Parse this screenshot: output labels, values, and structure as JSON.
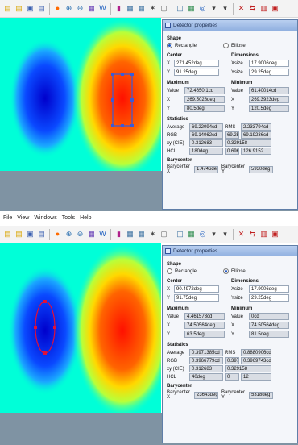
{
  "menu": [
    "File",
    "View",
    "Windows",
    "Tools",
    "Help"
  ],
  "toolbar_icons": [
    "open-folder-icon",
    "open-icon",
    "save-icon",
    "save-as-icon",
    "circle-icon",
    "zoom-in-icon",
    "zoom-out-icon",
    "color-map-icon",
    "w-icon",
    "palette-icon",
    "grid-icon",
    "grid-icon",
    "sun-icon",
    "square-icon",
    "chart-icon",
    "plot-icon",
    "crosshair-icon",
    "dropdown-icon",
    "dropdown-icon",
    "close-x-icon",
    "arrows-icon",
    "layout-icon",
    "frame-icon"
  ],
  "toolbar_glyphs": [
    "▤",
    "▤",
    "▣",
    "▤",
    "●",
    "⊕",
    "⊖",
    "▦",
    "W",
    "▮",
    "▦",
    "▦",
    "✶",
    "▢",
    "◫",
    "▦",
    "◎",
    "▾",
    "▾",
    "✕",
    "⇆",
    "▥",
    "▣"
  ],
  "dialog_title": "Detector properties",
  "labels": {
    "shape": "Shape",
    "rectangle": "Rectangle",
    "ellipse": "Ellipse",
    "center": "Center",
    "dimensions": "Dimensions",
    "x": "X",
    "y": "Y",
    "xsize": "Xsize",
    "ysize": "Ysize",
    "maximum": "Maximum",
    "minimum": "Minimum",
    "value": "Value",
    "statistics": "Statistics",
    "average": "Average",
    "rms": "RMS",
    "rgb": "RGB",
    "xy_cie": "xy (CIE)",
    "hcl": "HCL",
    "barycenter": "Barycenter",
    "barycenter_x": "Barycenter X",
    "barycenter_y": "Barycenter Y"
  },
  "top": {
    "shape": "rectangle",
    "center_x": "271.452deg",
    "center_y": "91.25deg",
    "xsize": "17.9006deg",
    "ysize": "29.25deg",
    "max_value": "72.4650 1cd",
    "max_x": "269.5028deg",
    "max_y": "80.5deg",
    "min_value": "61.40014cd",
    "min_x": "269.3923deg",
    "min_y": "120.5deg",
    "average": "69.22094cd",
    "rms": "2.233794cd",
    "rgb": [
      "69.14062cd",
      "69.25488cd",
      "69.19236cd"
    ],
    "xy": [
      "0.312683",
      "0.329158"
    ],
    "hcl": [
      "180deg",
      "0.6960582",
      "126.9152"
    ],
    "barycenter_x": "1.4746deg",
    "barycenter_y": "5930deg"
  },
  "bottom": {
    "shape": "ellipse",
    "center_x": "90.4972deg",
    "center_y": "91.75deg",
    "xsize": "17.9006deg",
    "ysize": "29.25deg",
    "max_value": "4.461573cd",
    "max_x": "74.50564deg",
    "max_y": "63.5deg",
    "min_value": "0cd",
    "min_x": "74.50564deg",
    "min_y": "81.5deg",
    "average": "0.3971385cd",
    "rms": "0.8880906cd",
    "rgb": [
      "0.3966779cd",
      "0.3973333cd",
      "0.3969743cd"
    ],
    "xy": [
      "0.312683",
      "0.329158"
    ],
    "hcl": [
      "40deg",
      "0",
      "12"
    ],
    "barycenter_x": "23643deg",
    "barycenter_y": "5318deg"
  },
  "colors": {
    "background_field": "#00ffd8",
    "blue_spot": "#0000cc",
    "red_spot": "#ff1000",
    "detector_outline_rect": "#3b5bd8",
    "detector_outline_ellipse": "#e0103a",
    "dialog_title": "#90b0e0"
  }
}
